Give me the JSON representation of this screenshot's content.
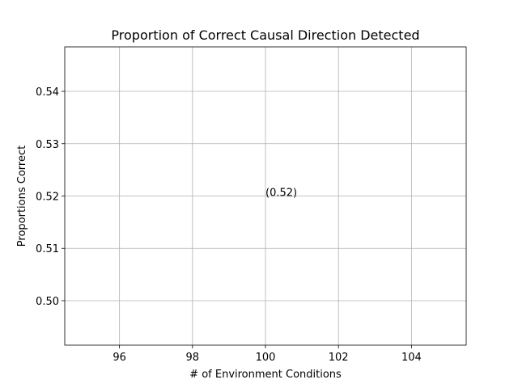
{
  "chart_data": {
    "type": "scatter",
    "title": "Proportion of Correct Causal Direction Detected",
    "xlabel": "# of Environment Conditions",
    "ylabel": "Proportions Correct",
    "xlim": [
      94.5,
      105.5
    ],
    "ylim": [
      0.4915,
      0.5485
    ],
    "x_ticks": [
      96,
      98,
      100,
      102,
      104
    ],
    "y_ticks": [
      0.5,
      0.51,
      0.52,
      0.53,
      0.54
    ],
    "x_tick_labels": [
      "96",
      "98",
      "100",
      "102",
      "104"
    ],
    "y_tick_labels": [
      "0.50",
      "0.51",
      "0.52",
      "0.53",
      "0.54"
    ],
    "grid": true,
    "series": [
      {
        "x": [
          100
        ],
        "y": [
          0.52
        ]
      }
    ],
    "annotations": [
      {
        "text": "(0.52)",
        "x": 100,
        "y": 0.52
      }
    ]
  }
}
